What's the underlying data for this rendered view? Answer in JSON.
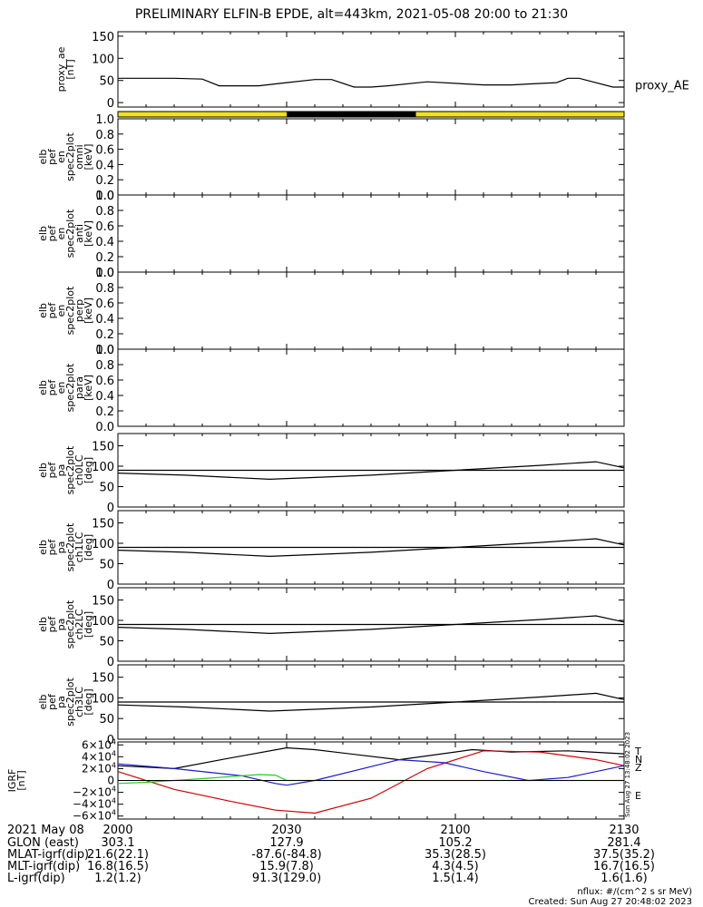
{
  "title": "PRELIMINARY ELFIN-B EPDE, alt=443km, 2021-05-08 20:00 to 21:30",
  "colors": {
    "line": "#000000",
    "bar_yellow": "#f2e21a",
    "bar_black": "#000000",
    "red": "#d00000",
    "blue": "#1a1acc",
    "green": "#22cc22"
  },
  "chart_data": [
    {
      "id": "proxy_ae",
      "type": "line",
      "ylabel_lines": [
        "proxy_ae",
        "[nT]"
      ],
      "legend": "proxy_AE",
      "yticks": [
        0,
        50,
        100,
        150
      ],
      "ylim": [
        -10,
        160
      ],
      "series": [
        {
          "name": "proxy_AE",
          "x": [
            0,
            10,
            15,
            18,
            25,
            30,
            35,
            38,
            42,
            45,
            48,
            55,
            65,
            70,
            73,
            78,
            80,
            82,
            88,
            90
          ],
          "values": [
            55,
            55,
            53,
            38,
            38,
            45,
            52,
            52,
            35,
            35,
            38,
            47,
            40,
            40,
            42,
            45,
            55,
            55,
            35,
            35
          ]
        }
      ],
      "xlim": [
        0,
        90
      ]
    },
    {
      "id": "bar",
      "type": "bar",
      "segments": [
        {
          "from": 0,
          "to": 30,
          "color": "yellow"
        },
        {
          "from": 30,
          "to": 53,
          "color": "black"
        },
        {
          "from": 53,
          "to": 90,
          "color": "yellow"
        }
      ],
      "xlim": [
        0,
        90
      ]
    },
    {
      "id": "en_omni",
      "type": "line",
      "ylabel_lines": [
        "elb",
        "pef",
        "en",
        "spec2plot",
        "omni",
        "[keV]"
      ],
      "yticks": [
        "0.0",
        "0.2",
        "0.4",
        "0.6",
        "0.8",
        "1.0"
      ],
      "ylim": [
        0,
        1
      ],
      "xlim": [
        0,
        90
      ]
    },
    {
      "id": "en_anti",
      "type": "line",
      "ylabel_lines": [
        "elb",
        "pef",
        "en",
        "spec2plot",
        "anti",
        "[keV]"
      ],
      "yticks": [
        "0.0",
        "0.2",
        "0.4",
        "0.6",
        "0.8",
        "1.0"
      ],
      "ylim": [
        0,
        1
      ],
      "xlim": [
        0,
        90
      ]
    },
    {
      "id": "en_perp",
      "type": "line",
      "ylabel_lines": [
        "elb",
        "pef",
        "en",
        "spec2plot",
        "perp",
        "[keV]"
      ],
      "yticks": [
        "0.0",
        "0.2",
        "0.4",
        "0.6",
        "0.8",
        "1.0"
      ],
      "ylim": [
        0,
        1
      ],
      "xlim": [
        0,
        90
      ]
    },
    {
      "id": "en_para",
      "type": "line",
      "ylabel_lines": [
        "elb",
        "pef",
        "en",
        "spec2plot",
        "para",
        "[keV]"
      ],
      "yticks": [
        "0.0",
        "0.2",
        "0.4",
        "0.6",
        "0.8",
        "1.0"
      ],
      "ylim": [
        0,
        1
      ],
      "xlim": [
        0,
        90
      ]
    },
    {
      "id": "pa_ch0LC",
      "type": "line",
      "ylabel_lines": [
        "elb",
        "pef",
        "pa",
        "spec2plot",
        "ch0LC",
        "[deg]"
      ],
      "yticks": [
        0,
        50,
        100,
        150
      ],
      "ylim": [
        0,
        180
      ],
      "xlim": [
        0,
        90
      ],
      "series": [
        {
          "name": "",
          "x": [
            0,
            90
          ],
          "values": [
            90,
            90
          ]
        },
        {
          "name": "",
          "x": [
            0,
            12,
            27,
            45,
            60,
            75,
            85,
            90
          ],
          "values": [
            83,
            78,
            68,
            78,
            90,
            102,
            111,
            96
          ]
        }
      ]
    },
    {
      "id": "pa_ch1LC",
      "type": "line",
      "ylabel_lines": [
        "elb",
        "pef",
        "pa",
        "spec2plot",
        "ch1LC",
        "[deg]"
      ],
      "yticks": [
        0,
        50,
        100,
        150
      ],
      "ylim": [
        0,
        180
      ],
      "xlim": [
        0,
        90
      ],
      "series": [
        {
          "name": "",
          "x": [
            0,
            90
          ],
          "values": [
            90,
            90
          ]
        },
        {
          "name": "",
          "x": [
            0,
            12,
            27,
            45,
            60,
            75,
            85,
            90
          ],
          "values": [
            83,
            78,
            68,
            78,
            90,
            102,
            111,
            96
          ]
        }
      ]
    },
    {
      "id": "pa_ch2LC",
      "type": "line",
      "ylabel_lines": [
        "elb",
        "pef",
        "pa",
        "spec2plot",
        "ch2LC",
        "[deg]"
      ],
      "yticks": [
        0,
        50,
        100,
        150
      ],
      "ylim": [
        0,
        180
      ],
      "xlim": [
        0,
        90
      ],
      "series": [
        {
          "name": "",
          "x": [
            0,
            90
          ],
          "values": [
            90,
            90
          ]
        },
        {
          "name": "",
          "x": [
            0,
            12,
            27,
            45,
            60,
            75,
            85,
            90
          ],
          "values": [
            83,
            78,
            68,
            78,
            90,
            102,
            111,
            96
          ]
        }
      ]
    },
    {
      "id": "pa_ch3LC",
      "type": "line",
      "ylabel_lines": [
        "elb",
        "pef",
        "pa",
        "spec2plot",
        "ch3LC",
        "[deg]"
      ],
      "yticks": [
        0,
        50,
        100,
        150
      ],
      "ylim": [
        0,
        180
      ],
      "xlim": [
        0,
        90
      ],
      "series": [
        {
          "name": "",
          "x": [
            0,
            90
          ],
          "values": [
            90,
            90
          ]
        },
        {
          "name": "",
          "x": [
            0,
            12,
            27,
            45,
            60,
            75,
            85,
            90
          ],
          "values": [
            83,
            78,
            68,
            78,
            90,
            102,
            111,
            96
          ]
        }
      ]
    },
    {
      "id": "bgrf",
      "type": "line",
      "ylabel_lines": [
        "IGRF",
        "[nT]"
      ],
      "yticks": [
        -60000,
        -40000,
        -20000,
        0,
        20000,
        40000,
        60000
      ],
      "ytick_mantissa": [
        "−6×10",
        "−4×10",
        "−2×10",
        "0",
        "2×10",
        "4×10",
        "6×10"
      ],
      "ytick_exponent": "4",
      "ylim": [
        -65000,
        65000
      ],
      "xlim": [
        0,
        90
      ],
      "legend_labels": [
        "T",
        "N",
        "Z",
        "E"
      ],
      "side_text": "Sun Aug 27 13:48:02 2023",
      "series": [
        {
          "name": "T",
          "color": "black",
          "x": [
            0,
            10,
            20,
            30,
            35,
            50,
            63,
            70,
            80,
            90
          ],
          "values": [
            25000,
            20000,
            38000,
            55000,
            52000,
            35000,
            52000,
            48000,
            50000,
            45000
          ]
        },
        {
          "name": "N",
          "color": "red",
          "x": [
            0,
            10,
            20,
            28,
            35,
            45,
            55,
            65,
            75,
            85,
            90
          ],
          "values": [
            15000,
            -15000,
            -35000,
            -50000,
            -55000,
            -30000,
            20000,
            50000,
            48000,
            35000,
            25000
          ]
        },
        {
          "name": "Z",
          "color": "blue",
          "x": [
            0,
            10,
            22,
            28,
            30,
            35,
            50,
            58,
            65,
            73,
            80,
            90
          ],
          "values": [
            28000,
            20000,
            8000,
            -5000,
            -8000,
            0,
            35000,
            30000,
            15000,
            0,
            5000,
            25000
          ]
        },
        {
          "name": "E",
          "color": "green",
          "x": [
            0,
            5,
            15,
            25,
            28,
            30,
            90
          ],
          "values": [
            -5000,
            -3000,
            3000,
            10000,
            9000,
            0,
            0
          ]
        }
      ]
    }
  ],
  "xaxis": {
    "ticks": [
      {
        "x": 0,
        "label": "2000"
      },
      {
        "x": 30,
        "label": "2030"
      },
      {
        "x": 60,
        "label": "2100"
      },
      {
        "x": 90,
        "label": "2130"
      }
    ],
    "rows": [
      {
        "label": "2021 May 08",
        "values": [
          "",
          "",
          "",
          ""
        ]
      },
      {
        "label": "GLON (east)",
        "values": [
          "303.1",
          "127.9",
          "105.2",
          "281.4"
        ]
      },
      {
        "label": "MLAT-igrf(dip)",
        "values": [
          "21.6(22.1)",
          "-87.6(-84.8)",
          "35.3(28.5)",
          "37.5(35.2)"
        ]
      },
      {
        "label": "MLT-igrf(dip)",
        "values": [
          "16.8(16.5)",
          "15.9(7.8)",
          "4.3(4.5)",
          "16.7(16.5)"
        ]
      },
      {
        "label": "L-igrf(dip)",
        "values": [
          "1.2(1.2)",
          "91.3(129.0)",
          "1.5(1.4)",
          "1.6(1.6)"
        ]
      }
    ]
  },
  "footer": {
    "nflux": "nflux: #/(cm^2 s sr MeV)",
    "created": "Created: Sun Aug 27 20:48:02 2023"
  }
}
